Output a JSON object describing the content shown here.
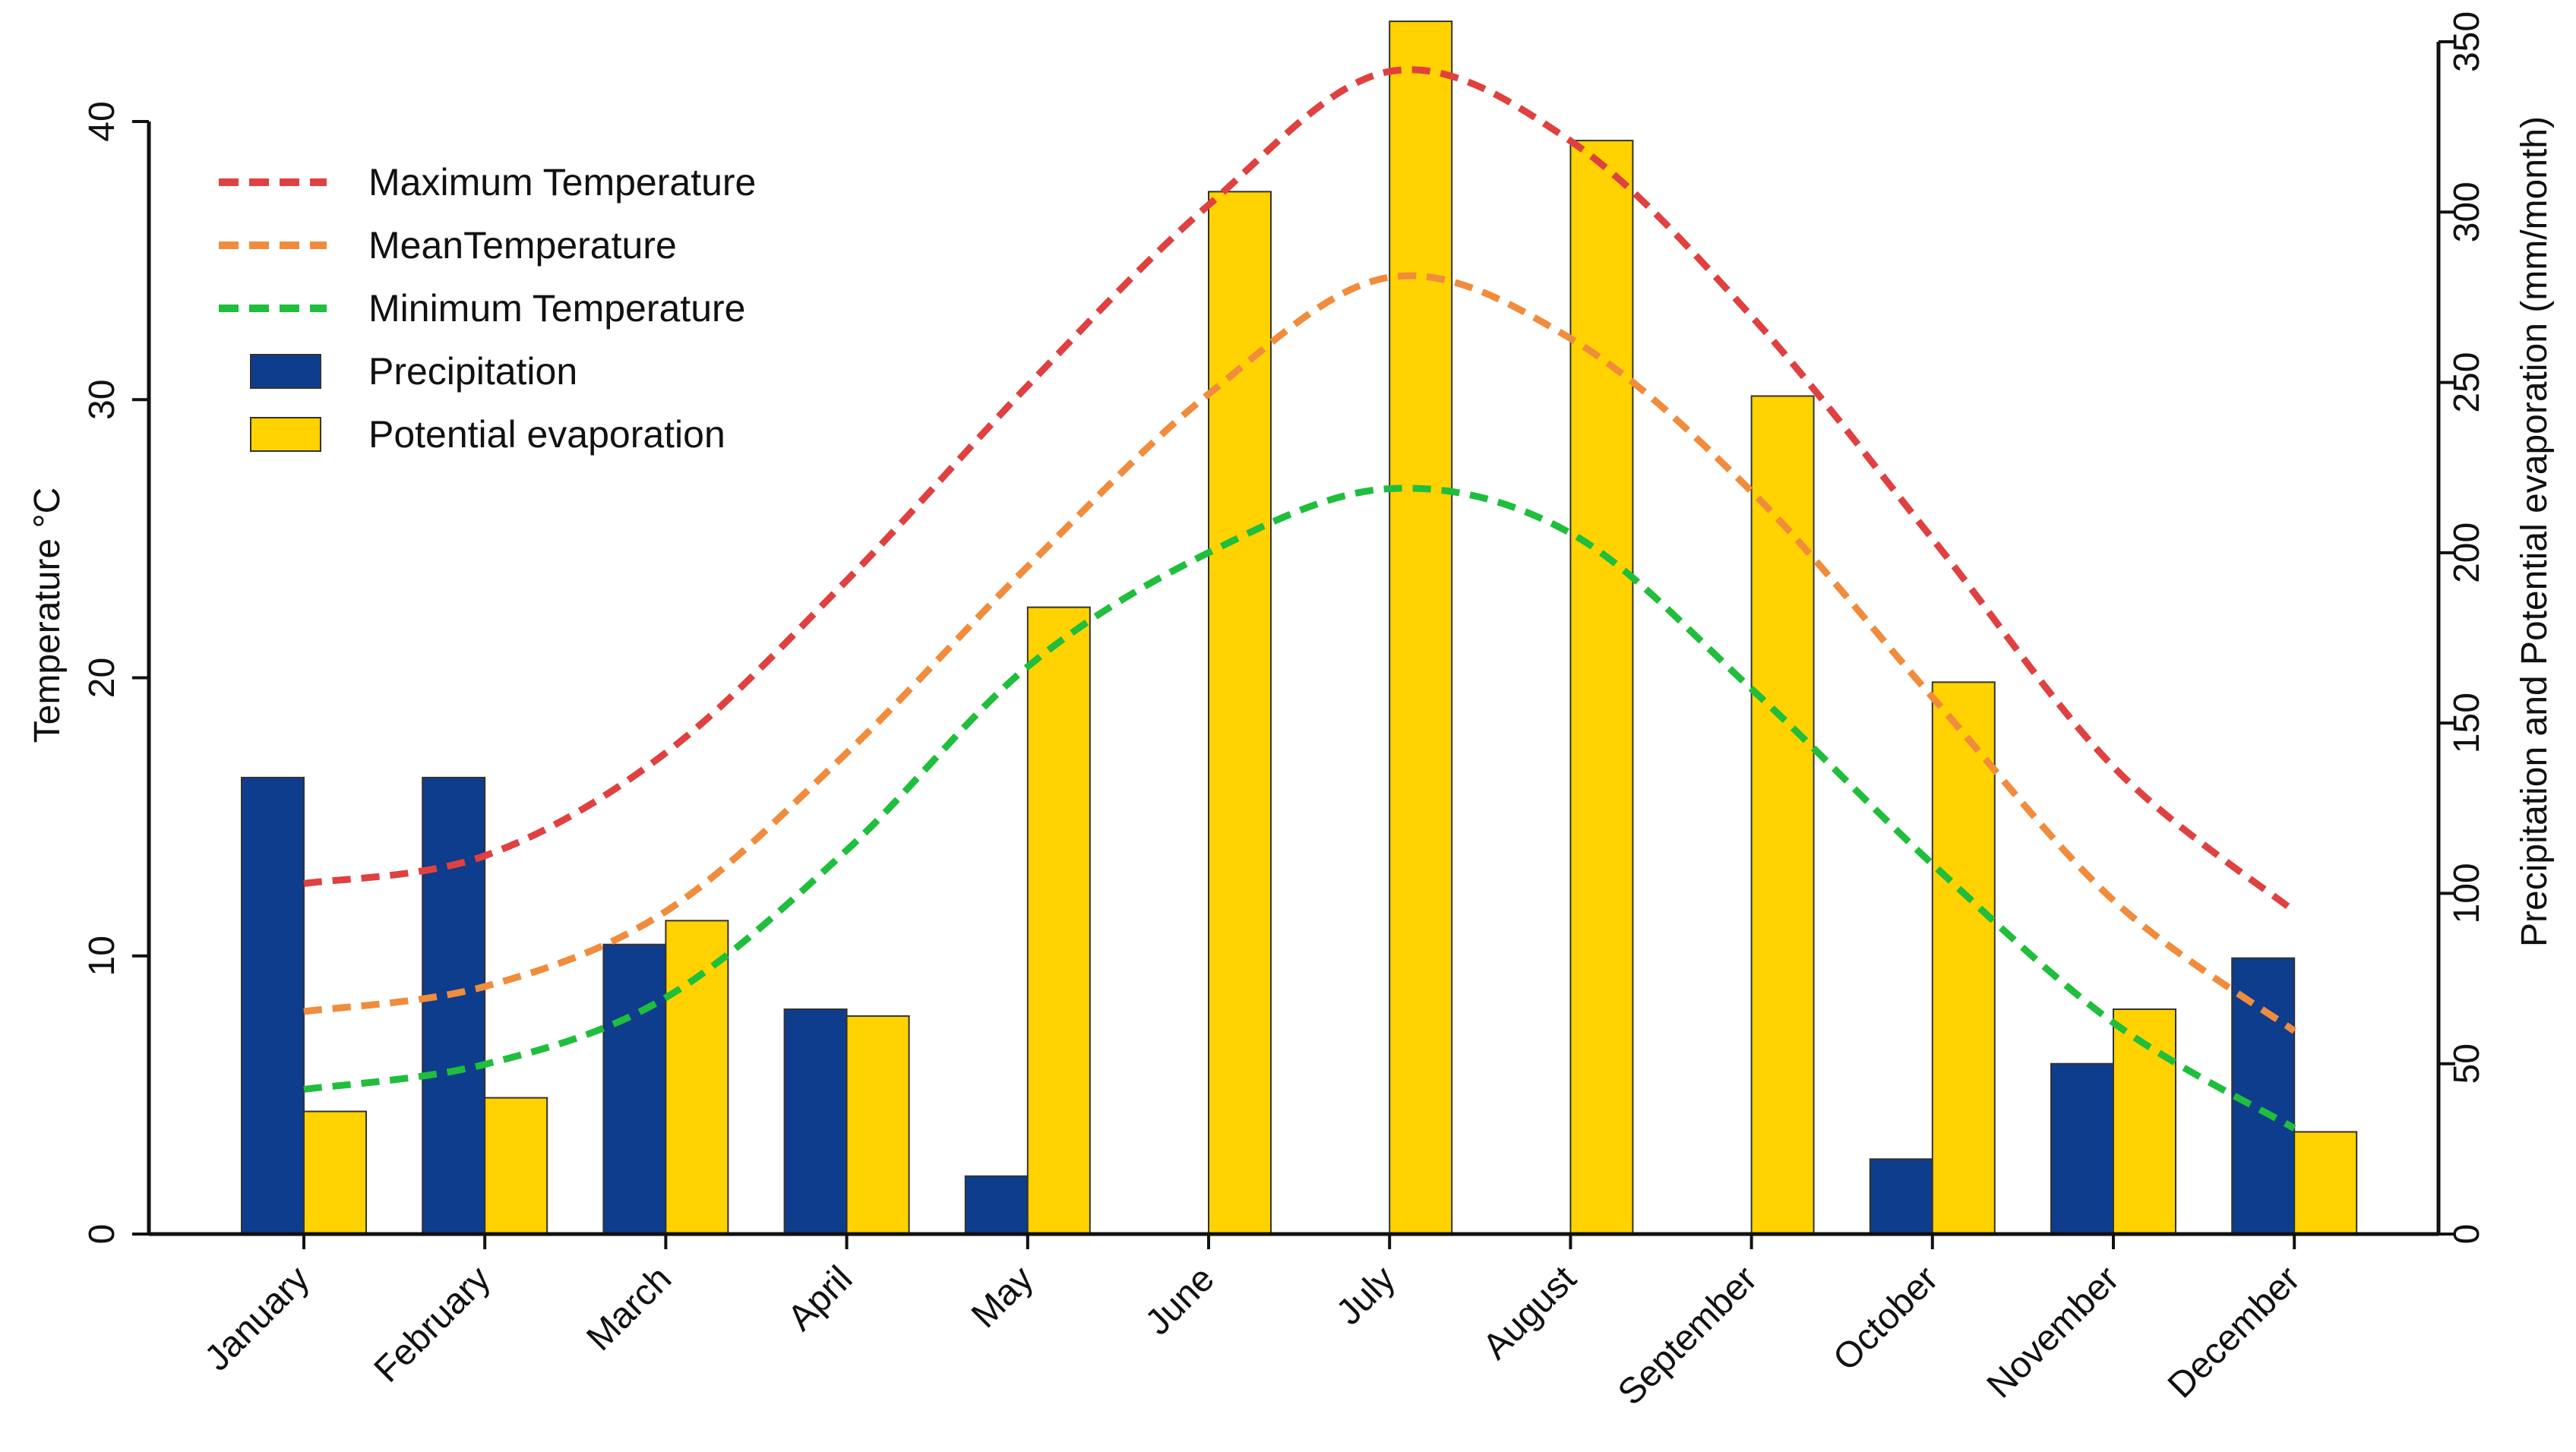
{
  "chart_data": {
    "type": "bar",
    "categories": [
      "January",
      "February",
      "March",
      "April",
      "May",
      "June",
      "July",
      "August",
      "September",
      "October",
      "November",
      "December"
    ],
    "bar_series": [
      {
        "name": "Precipitation",
        "color": "#0d3d8c",
        "axis": "right",
        "values": [
          134,
          134,
          85,
          66,
          17,
          0,
          0,
          0,
          0,
          22,
          50,
          81
        ]
      },
      {
        "name": "Potential evaporation",
        "color": "#ffd200",
        "axis": "right",
        "values": [
          36,
          40,
          92,
          64,
          184,
          306,
          356,
          321,
          246,
          162,
          66,
          30
        ]
      }
    ],
    "line_series": [
      {
        "name": "Maximum Temperature",
        "color": "#e04040",
        "axis": "left",
        "values": [
          12.6,
          13.6,
          17.3,
          23.5,
          30.5,
          37.0,
          41.8,
          39.3,
          33.0,
          25.0,
          16.8,
          11.6
        ]
      },
      {
        "name": "MeanTemperature",
        "color": "#f08c3c",
        "axis": "left",
        "values": [
          8.0,
          8.9,
          11.6,
          17.3,
          24.0,
          30.2,
          34.4,
          32.2,
          26.7,
          19.3,
          12.0,
          7.3
        ]
      },
      {
        "name": "Minimum Temperature",
        "color": "#1fbe3c",
        "axis": "left",
        "values": [
          5.2,
          6.1,
          8.5,
          13.8,
          20.4,
          24.5,
          26.8,
          25.2,
          19.6,
          13.3,
          7.6,
          3.8
        ]
      }
    ],
    "left_axis": {
      "title": "Temperature °C",
      "range": [
        0,
        40
      ],
      "ticks": [
        "0",
        "10",
        "20",
        "30",
        "40"
      ]
    },
    "right_axis": {
      "title": "Precipitation and Potential evaporation (mm/month)",
      "range": [
        0,
        350
      ],
      "ticks": [
        "0",
        "50",
        "100",
        "150",
        "200",
        "250",
        "300",
        "350"
      ]
    },
    "legend": {
      "position": "top-left",
      "entries": [
        {
          "label": "Maximum Temperature",
          "kind": "line",
          "color": "#e04040"
        },
        {
          "label": "MeanTemperature",
          "kind": "line",
          "color": "#f08c3c"
        },
        {
          "label": "Minimum Temperature",
          "kind": "line",
          "color": "#1fbe3c"
        },
        {
          "label": "Precipitation",
          "kind": "box",
          "color": "#0d3d8c"
        },
        {
          "label": "Potential evaporation",
          "kind": "box",
          "color": "#ffd200"
        }
      ]
    },
    "grid": false
  }
}
